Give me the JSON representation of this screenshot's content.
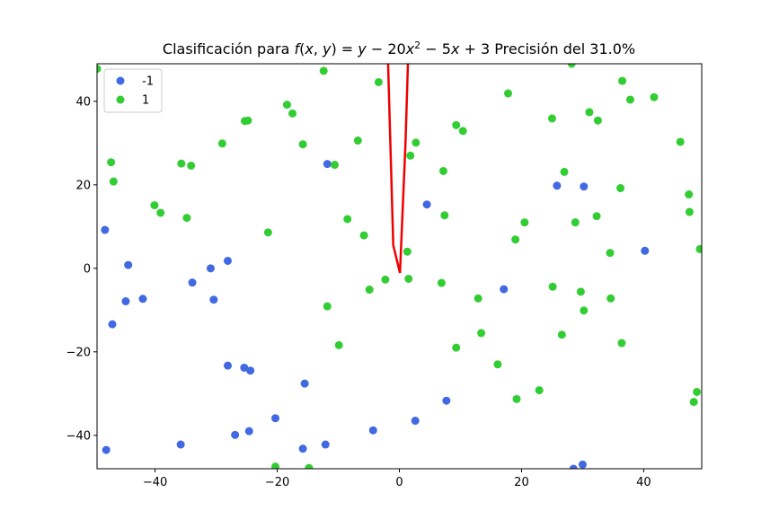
{
  "chart_data": {
    "type": "scatter",
    "title": "Clasificación para f(x,y) = y − 20x² − 5x + 3 Precisión del 31.0%",
    "xlim": [
      -49.5,
      49.5
    ],
    "ylim": [
      -48.0,
      49.0
    ],
    "xticks": [
      -40,
      -20,
      0,
      20,
      40
    ],
    "yticks": [
      -40,
      -20,
      0,
      20,
      40
    ],
    "xtick_labels": [
      "−40",
      "−20",
      "0",
      "20",
      "40"
    ],
    "ytick_labels": [
      "−40",
      "−20",
      "0",
      "20",
      "40"
    ],
    "grid": false,
    "legend_placement": "top-left",
    "series": [
      {
        "name": "-1",
        "color": "#4169e1",
        "points": [
          [
            -48.2,
            9.2
          ],
          [
            -44.4,
            0.8
          ],
          [
            -44.8,
            -7.9
          ],
          [
            -47.0,
            -13.4
          ],
          [
            -42.0,
            -7.3
          ],
          [
            -33.9,
            -3.4
          ],
          [
            -30.9,
            0.0
          ],
          [
            -30.4,
            -7.5
          ],
          [
            -28.1,
            1.8
          ],
          [
            -48.0,
            -43.5
          ],
          [
            -35.8,
            -42.2
          ],
          [
            -28.1,
            -23.3
          ],
          [
            -25.4,
            -23.8
          ],
          [
            -24.4,
            -24.5
          ],
          [
            -26.9,
            -39.9
          ],
          [
            -24.6,
            -39.0
          ],
          [
            -20.3,
            -35.9
          ],
          [
            -15.5,
            -27.6
          ],
          [
            -15.8,
            -43.2
          ],
          [
            -12.1,
            -42.2
          ],
          [
            -11.8,
            25.0
          ],
          [
            -4.3,
            -38.8
          ],
          [
            2.6,
            -36.5
          ],
          [
            4.5,
            15.3
          ],
          [
            7.7,
            -31.7
          ],
          [
            17.1,
            -5.0
          ],
          [
            25.8,
            19.8
          ],
          [
            30.2,
            19.6
          ],
          [
            40.2,
            4.2
          ],
          [
            28.5,
            -48.0
          ],
          [
            30.0,
            -47.0
          ]
        ]
      },
      {
        "name": "1",
        "color": "#32cd32",
        "points": [
          [
            -49.5,
            47.8
          ],
          [
            -47.2,
            25.4
          ],
          [
            -46.8,
            20.8
          ],
          [
            -40.1,
            15.1
          ],
          [
            -39.1,
            13.3
          ],
          [
            -35.7,
            25.1
          ],
          [
            -34.1,
            24.6
          ],
          [
            -34.8,
            12.1
          ],
          [
            -29.0,
            29.9
          ],
          [
            -25.3,
            35.3
          ],
          [
            -24.8,
            35.4
          ],
          [
            -21.5,
            8.6
          ],
          [
            -18.4,
            39.2
          ],
          [
            -17.5,
            37.1
          ],
          [
            -15.8,
            29.7
          ],
          [
            -12.4,
            47.3
          ],
          [
            -10.6,
            24.8
          ],
          [
            -6.8,
            30.6
          ],
          [
            -8.5,
            11.8
          ],
          [
            -5.8,
            7.9
          ],
          [
            -3.4,
            44.6
          ],
          [
            -4.9,
            -5.1
          ],
          [
            -2.3,
            -2.7
          ],
          [
            -11.8,
            -9.1
          ],
          [
            -9.9,
            -18.4
          ],
          [
            -20.3,
            -47.5
          ],
          [
            -14.8,
            -47.8
          ],
          [
            1.3,
            4.0
          ],
          [
            1.8,
            27.0
          ],
          [
            2.7,
            30.1
          ],
          [
            1.5,
            -2.5
          ],
          [
            7.2,
            23.3
          ],
          [
            7.4,
            12.7
          ],
          [
            6.9,
            -3.5
          ],
          [
            9.3,
            34.3
          ],
          [
            10.4,
            32.9
          ],
          [
            12.9,
            -7.2
          ],
          [
            13.4,
            -15.5
          ],
          [
            9.3,
            -19.0
          ],
          [
            16.1,
            -23.0
          ],
          [
            17.8,
            41.9
          ],
          [
            20.5,
            11.0
          ],
          [
            19.0,
            6.9
          ],
          [
            19.2,
            -31.3
          ],
          [
            22.9,
            -29.2
          ],
          [
            25.0,
            35.9
          ],
          [
            25.1,
            -4.4
          ],
          [
            26.6,
            -15.9
          ],
          [
            27.0,
            23.1
          ],
          [
            28.2,
            49.0
          ],
          [
            28.8,
            11.0
          ],
          [
            29.7,
            -5.6
          ],
          [
            30.2,
            -10.1
          ],
          [
            31.1,
            37.4
          ],
          [
            32.5,
            35.4
          ],
          [
            32.3,
            12.5
          ],
          [
            34.5,
            3.7
          ],
          [
            34.6,
            -7.2
          ],
          [
            36.2,
            19.2
          ],
          [
            36.4,
            -17.9
          ],
          [
            36.5,
            44.9
          ],
          [
            37.8,
            40.4
          ],
          [
            41.7,
            41.0
          ],
          [
            46.0,
            30.3
          ],
          [
            47.4,
            17.7
          ],
          [
            47.5,
            13.5
          ],
          [
            48.2,
            -32.0
          ],
          [
            48.7,
            -29.6
          ],
          [
            49.2,
            4.6
          ]
        ]
      }
    ],
    "decision_boundary": {
      "color": "#ee0000",
      "points": [
        [
          -1.85,
          49.0
        ],
        [
          -1.0,
          5.5
        ],
        [
          0.1,
          -1.1
        ],
        [
          1.0,
          30.0
        ],
        [
          1.4,
          49.0
        ]
      ]
    }
  }
}
